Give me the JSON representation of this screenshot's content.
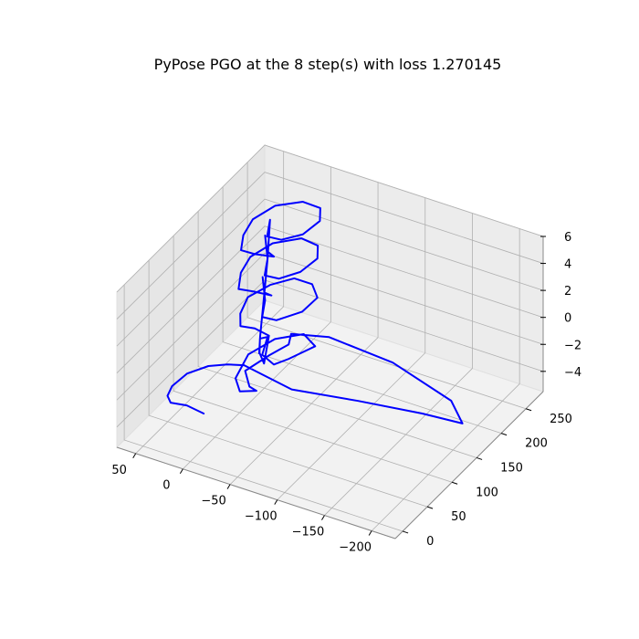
{
  "chart_data": {
    "type": "line",
    "projection": "3d",
    "title": "PyPose PGO at the 8 step(s) with loss 1.270145",
    "xlabel": "",
    "ylabel": "",
    "zlabel": "",
    "xlim": [
      -225,
      70
    ],
    "ylim": [
      -15,
      285
    ],
    "zlim": [
      -5.5,
      6.0
    ],
    "x_ticks": [
      -200,
      -150,
      -100,
      -50,
      0,
      50
    ],
    "y_ticks": [
      0,
      50,
      100,
      150,
      200,
      250
    ],
    "z_ticks": [
      -4,
      -2,
      0,
      2,
      4,
      6
    ],
    "x_tick_labels": [
      "−200",
      "−150",
      "−100",
      "−50",
      "0",
      "50"
    ],
    "y_tick_labels": [
      "0",
      "50",
      "100",
      "150",
      "200",
      "250"
    ],
    "z_tick_labels": [
      "−4",
      "−2",
      "0",
      "2",
      "4",
      "6"
    ],
    "grid": true,
    "colors": {
      "line": "#0000ff",
      "pane": "#f2f2f2",
      "grid": "#b0b0b0"
    },
    "series": [
      {
        "color": "#0000ff",
        "points": [
          [
            -10,
            8,
            -2.0
          ],
          [
            10,
            12,
            -2.0
          ],
          [
            25,
            8,
            -2.0
          ],
          [
            32,
            15,
            -1.9
          ],
          [
            35,
            30,
            -1.8
          ],
          [
            32,
            55,
            -1.7
          ],
          [
            20,
            75,
            -1.6
          ],
          [
            5,
            85,
            -1.5
          ],
          [
            -10,
            90,
            -1.4
          ],
          [
            -50,
            110,
            -3.0
          ],
          [
            -110,
            130,
            -3.2
          ],
          [
            -170,
            145,
            -3.3
          ],
          [
            -210,
            150,
            -3.3
          ],
          [
            -185,
            175,
            -3.1
          ],
          [
            -110,
            200,
            -2.9
          ],
          [
            -40,
            205,
            -2.8
          ],
          [
            -5,
            195,
            -3.0
          ],
          [
            -5,
            190,
            -3.6
          ],
          [
            5,
            170,
            -3.9
          ],
          [
            15,
            140,
            -4.2
          ],
          [
            0,
            120,
            -4.3
          ],
          [
            -10,
            115,
            -4.2
          ],
          [
            5,
            110,
            -4.4
          ],
          [
            20,
            130,
            -4.5
          ],
          [
            30,
            175,
            -4.6
          ],
          [
            20,
            210,
            -4.5
          ],
          [
            0,
            230,
            -4.4
          ],
          [
            -20,
            215,
            -4.3
          ],
          [
            -10,
            180,
            -4.2
          ],
          [
            -5,
            160,
            -4.0
          ],
          [
            10,
            165,
            -3.8
          ],
          [
            20,
            195,
            -3.8
          ],
          [
            15,
            170,
            -2.9
          ],
          [
            5,
            150,
            -3.0
          ],
          [
            -5,
            140,
            -3.2
          ],
          [
            -5,
            150,
            -1.5
          ],
          [
            10,
            150,
            -1.3
          ],
          [
            20,
            140,
            -1.0
          ],
          [
            28,
            155,
            -0.8
          ],
          [
            33,
            180,
            -0.6
          ],
          [
            25,
            210,
            -0.6
          ],
          [
            10,
            230,
            -0.5
          ],
          [
            -10,
            228,
            -0.4
          ],
          [
            -25,
            210,
            -0.4
          ],
          [
            -22,
            185,
            -0.6
          ],
          [
            -5,
            165,
            -0.9
          ],
          [
            10,
            165,
            -1.0
          ],
          [
            20,
            190,
            -0.9
          ],
          [
            20,
            185,
            1.0
          ],
          [
            5,
            160,
            1.1
          ],
          [
            -5,
            155,
            1.3
          ],
          [
            10,
            148,
            1.5
          ],
          [
            22,
            140,
            1.7
          ],
          [
            30,
            160,
            2.0
          ],
          [
            33,
            185,
            2.2
          ],
          [
            25,
            215,
            2.3
          ],
          [
            5,
            235,
            2.4
          ],
          [
            -15,
            230,
            2.5
          ],
          [
            -25,
            210,
            2.5
          ],
          [
            -20,
            185,
            2.3
          ],
          [
            -5,
            170,
            2.0
          ],
          [
            10,
            170,
            1.9
          ],
          [
            20,
            195,
            2.0
          ],
          [
            20,
            190,
            3.9
          ],
          [
            5,
            165,
            4.0
          ],
          [
            -5,
            160,
            4.0
          ],
          [
            10,
            150,
            4.2
          ],
          [
            22,
            145,
            4.4
          ],
          [
            30,
            165,
            4.6
          ],
          [
            33,
            190,
            4.8
          ],
          [
            25,
            220,
            4.9
          ],
          [
            5,
            238,
            5.0
          ],
          [
            -15,
            235,
            5.1
          ],
          [
            -25,
            215,
            5.1
          ],
          [
            -20,
            190,
            4.9
          ],
          [
            -5,
            175,
            4.7
          ],
          [
            10,
            175,
            4.6
          ],
          [
            20,
            200,
            4.7
          ],
          [
            20,
            195,
            2.0
          ],
          [
            20,
            190,
            0.2
          ],
          [
            20,
            185,
            -1.5
          ],
          [
            20,
            180,
            -3.2
          ],
          [
            20,
            178,
            -4.4
          ]
        ]
      }
    ]
  }
}
